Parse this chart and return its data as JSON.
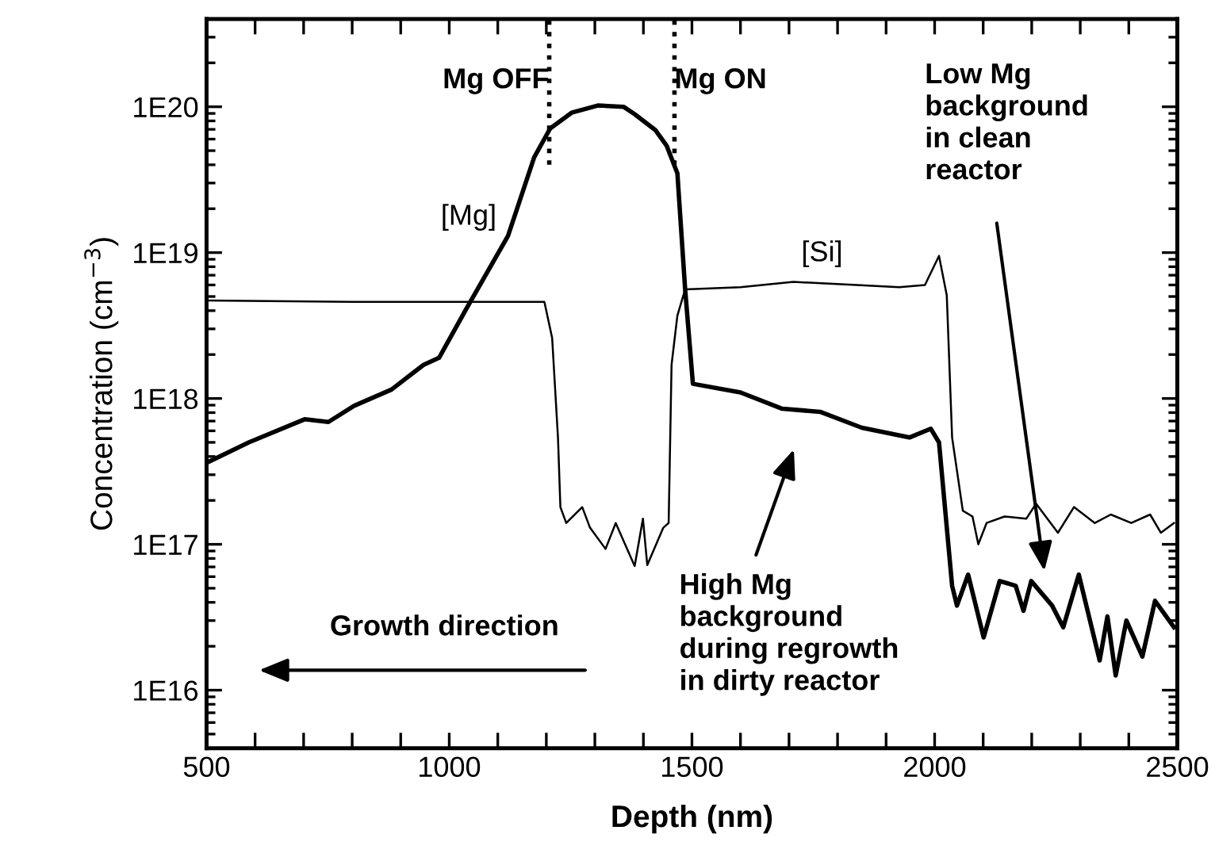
{
  "chart_data": {
    "type": "line",
    "xlabel": "Depth (nm)",
    "ylabel": "Concentration (cm$^{−3}$)",
    "log": "y",
    "xlim": [
      500,
      2500
    ],
    "ylim": [
      4000000000000000.0,
      4e+20
    ],
    "xticks": [
      500,
      {
        "value": 600,
        "label": null
      },
      {
        "value": 700,
        "label": null
      },
      {
        "value": 800,
        "label": null
      },
      {
        "value": 900,
        "label": null
      },
      1000,
      {
        "value": 1100,
        "label": null
      },
      {
        "value": 1200,
        "label": null
      },
      {
        "value": 1300,
        "label": null
      },
      {
        "value": 1400,
        "label": null
      },
      1500,
      {
        "value": 1600,
        "label": null
      },
      {
        "value": 1700,
        "label": null
      },
      {
        "value": 1800,
        "label": null
      },
      {
        "value": 1900,
        "label": null
      },
      2000,
      {
        "value": 2100,
        "label": null
      },
      {
        "value": 2200,
        "label": null
      },
      {
        "value": 2300,
        "label": null
      },
      {
        "value": 2400,
        "label": null
      },
      2500
    ],
    "yticks": [
      {
        "value": 1e+16,
        "label": "1E16"
      },
      {
        "value": 1e+17,
        "label": "1E17"
      },
      {
        "value": 1e+18,
        "label": "1E18"
      },
      {
        "value": 1e+19,
        "label": "1E19"
      },
      {
        "value": 1e+20,
        "label": "1E20"
      }
    ],
    "grid": false,
    "series": [
      {
        "color": "#000000",
        "line_style": "solid",
        "x": [
          506,
          587,
          702,
          751,
          804,
          881,
          947,
          979,
          1033,
          1121,
          1175,
          1208,
          1252,
          1306,
          1359,
          1382,
          1425,
          1448,
          1470,
          1486,
          1502,
          1600,
          1686,
          1764,
          1850,
          1948,
          1992,
          2009,
          2036,
          2046,
          2069,
          2101,
          2134,
          2167,
          2183,
          2199,
          2242,
          2265,
          2297,
          2340,
          2356,
          2373,
          2395,
          2428,
          2454,
          2493
        ],
        "values": [
          3.7e+17,
          5e+17,
          7.2e+17,
          6.9e+17,
          8.9e+17,
          1.15e+18,
          1.7e+18,
          1.9e+18,
          4e+18,
          1.3e+19,
          4.5e+19,
          7.1e+19,
          9.1e+19,
          1.02e+20,
          1e+20,
          8.9e+19,
          6.9e+19,
          5.4e+19,
          3.5e+19,
          5.6e+18,
          1.26e+18,
          1.1e+18,
          8.5e+17,
          8.1e+17,
          6.3e+17,
          5.4e+17,
          6.2e+17,
          5e+17,
          5.2e+16,
          3.8e+16,
          6.2e+16,
          2.3e+16,
          5.6e+16,
          5.2e+16,
          3.5e+16,
          5.6e+16,
          3.8e+16,
          2.7e+16,
          6.2e+16,
          1.6e+16,
          3.2e+16,
          1.26e+16,
          3e+16,
          1.7e+16,
          4.1e+16,
          2.7e+16
        ]
      },
      {
        "color": "#000000",
        "line_style": "solid",
        "x": [
          500,
          800,
          1100,
          1196,
          1212,
          1224,
          1229,
          1241,
          1274,
          1290,
          1322,
          1343,
          1382,
          1399,
          1408,
          1441,
          1452,
          1458,
          1470,
          1486,
          1600,
          1709,
          1840,
          1927,
          1980,
          2009,
          2025,
          2036,
          2046,
          2058,
          2078,
          2090,
          2107,
          2144,
          2189,
          2209,
          2254,
          2287,
          2330,
          2363,
          2405,
          2444,
          2466,
          2493
        ],
        "values": [
          4.7e+18,
          4.6e+18,
          4.6e+18,
          4.6e+18,
          2.6e+18,
          5.4e+17,
          1.8e+17,
          1.4e+17,
          1.8e+17,
          1.3e+17,
          9.3e+16,
          1.4e+17,
          7.1e+16,
          1.5e+17,
          7.2e+16,
          1.3e+17,
          1.4e+17,
          1.7e+18,
          3.7e+18,
          5.6e+18,
          5.8e+18,
          6.3e+18,
          6e+18,
          5.8e+18,
          6e+18,
          9.5e+18,
          5.1e+18,
          5.4e+17,
          3.2e+17,
          1.7e+17,
          1.55e+17,
          1e+17,
          1.4e+17,
          1.55e+17,
          1.5e+17,
          1.9e+17,
          1.2e+17,
          1.8e+17,
          1.4e+17,
          1.6e+17,
          1.4e+17,
          1.6e+17,
          1.2e+17,
          1.4e+17
        ]
      }
    ],
    "ref_lines": [
      {
        "axis": "x",
        "value": 1206,
        "label": "Mg OFF",
        "line_style": "dotted",
        "color": "#000000"
      },
      {
        "axis": "x",
        "value": 1464,
        "label": "Mg ON",
        "line_style": "dotted",
        "color": "#000000"
      }
    ],
    "annotations": [
      "[Mg]",
      "[Si]",
      "High Mg\nbackground\nduring regrowth\nin dirty reactor",
      "Low Mg\nbackground\nin clean\nreactor",
      "Growth direction"
    ]
  }
}
